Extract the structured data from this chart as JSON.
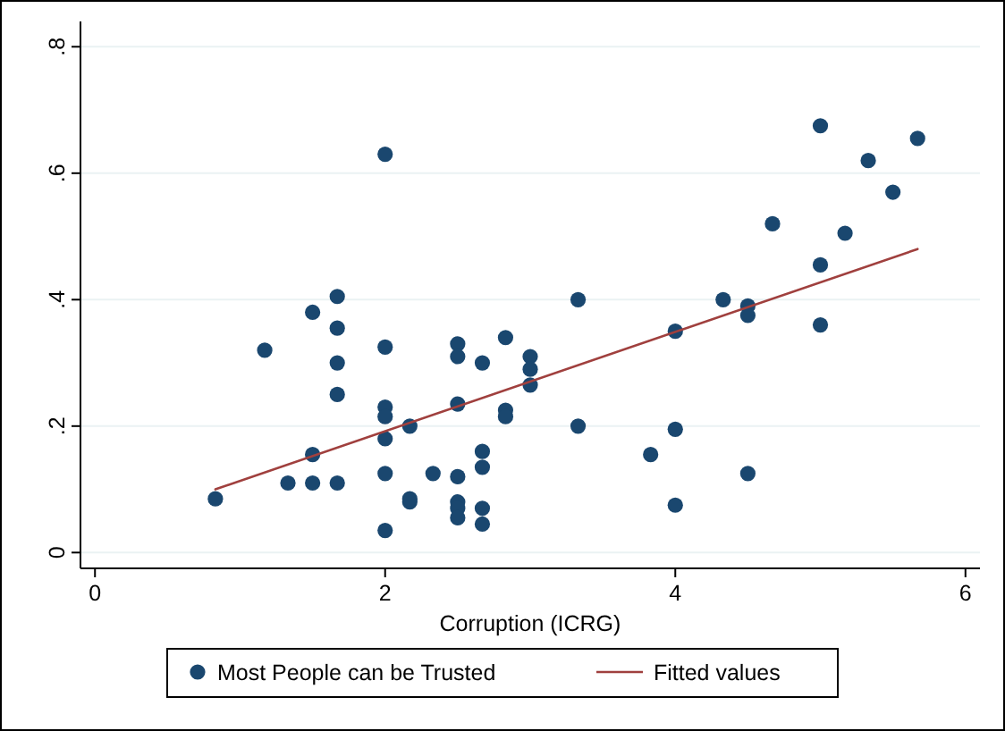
{
  "chart_data": {
    "type": "scatter",
    "xlabel": "Corruption (ICRG)",
    "xlim": [
      -0.1,
      6.1
    ],
    "xticks": [
      0,
      2,
      4,
      6
    ],
    "ylim": [
      -0.025,
      0.84
    ],
    "yticks": [
      {
        "value": 0,
        "label": "0"
      },
      {
        "value": 0.2,
        "label": ".2"
      },
      {
        "value": 0.4,
        "label": ".4"
      },
      {
        "value": 0.6,
        "label": ".6"
      },
      {
        "value": 0.8,
        "label": ".8"
      }
    ],
    "grid": "y",
    "legend": "bottom",
    "series": [
      {
        "name": "Most People can be Trusted",
        "color": "#1a476f",
        "marker": "circle",
        "x": [
          0.83,
          1.17,
          1.33,
          1.5,
          1.5,
          1.5,
          1.67,
          1.67,
          1.67,
          1.67,
          1.67,
          2,
          2,
          2,
          2,
          2,
          2,
          2,
          2.17,
          2.17,
          2.17,
          2.33,
          2.5,
          2.5,
          2.5,
          2.5,
          2.5,
          2.5,
          2.5,
          2.67,
          2.67,
          2.67,
          2.67,
          2.67,
          2.83,
          2.83,
          2.83,
          3,
          3,
          3,
          3.33,
          3.33,
          3.83,
          4,
          4,
          4,
          4.33,
          4.5,
          4.5,
          4.5,
          4.67,
          5,
          5,
          5,
          5.17,
          5.33,
          5.5,
          5.67
        ],
        "values": [
          0.085,
          0.32,
          0.11,
          0.155,
          0.11,
          0.38,
          0.405,
          0.355,
          0.3,
          0.25,
          0.11,
          0.63,
          0.325,
          0.23,
          0.215,
          0.18,
          0.125,
          0.035,
          0.2,
          0.08,
          0.085,
          0.125,
          0.33,
          0.31,
          0.235,
          0.12,
          0.08,
          0.07,
          0.055,
          0.3,
          0.16,
          0.135,
          0.07,
          0.045,
          0.34,
          0.225,
          0.215,
          0.31,
          0.29,
          0.265,
          0.4,
          0.2,
          0.155,
          0.35,
          0.195,
          0.075,
          0.4,
          0.39,
          0.375,
          0.125,
          0.52,
          0.455,
          0.675,
          0.36,
          0.505,
          0.62,
          0.57,
          0.655
        ]
      },
      {
        "name": "Fitted values",
        "color": "#a0403e",
        "type": "line",
        "x": [
          0.83,
          5.67
        ],
        "values": [
          0.1,
          0.48
        ]
      }
    ]
  }
}
